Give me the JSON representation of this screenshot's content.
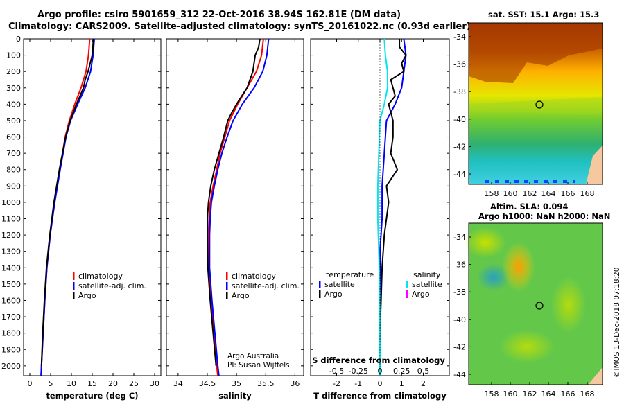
{
  "header": {
    "title_line1": "Argo profile: csiro 5901659_312 22-Oct-2016 38.94S 162.81E (DM data)",
    "title_line2": "Climatology: CARS2009. Satellite-adjusted climatology: synTS_20161022.nc (0.93d earlier)"
  },
  "colors": {
    "climatology": "#ff0000",
    "satellite": "#0000ff",
    "argo": "#000000",
    "s_satellite": "#00e5ee",
    "s_argo": "#ff00ff"
  },
  "chart_data": [
    {
      "type": "line",
      "panel": "temperature",
      "xlabel": "temperature (deg C)",
      "ylabel": "",
      "xlim": [
        -1.5,
        31.5
      ],
      "ylim": [
        2060,
        0
      ],
      "xticks": [
        "0",
        "5",
        "10",
        "15",
        "20",
        "25",
        "30"
      ],
      "yticks": [
        "0",
        "100",
        "200",
        "300",
        "400",
        "500",
        "600",
        "700",
        "800",
        "900",
        "1000",
        "1100",
        "1200",
        "1300",
        "1400",
        "1500",
        "1600",
        "1700",
        "1800",
        "1900",
        "2000"
      ],
      "legend": [
        "climatology",
        "satellite-adj. clim.",
        "Argo"
      ],
      "series": [
        {
          "name": "climatology",
          "depth": [
            0,
            100,
            200,
            300,
            400,
            500,
            600,
            800,
            1000,
            1200,
            1400,
            1600,
            1800,
            2000,
            2060
          ],
          "values": [
            14.4,
            14.1,
            13.5,
            12.3,
            10.8,
            9.5,
            8.5,
            7.2,
            5.9,
            4.9,
            4.1,
            3.6,
            3.2,
            2.8,
            2.7
          ]
        },
        {
          "name": "satellite-adj. clim.",
          "depth": [
            0,
            100,
            200,
            300,
            400,
            500,
            600,
            800,
            1000,
            1200,
            1400,
            1600,
            1800,
            2000,
            2060
          ],
          "values": [
            15.5,
            15.2,
            14.6,
            13.3,
            11.5,
            9.8,
            8.7,
            7.3,
            6.0,
            4.9,
            4.1,
            3.6,
            3.2,
            2.8,
            2.7
          ]
        },
        {
          "name": "Argo",
          "depth": [
            0,
            100,
            200,
            250,
            300,
            400,
            500,
            600,
            800,
            1000,
            1200,
            1400,
            1600,
            1800,
            2000
          ],
          "values": [
            15.3,
            15.0,
            14.0,
            13.3,
            12.9,
            11.2,
            9.7,
            8.6,
            7.1,
            5.8,
            4.8,
            4.0,
            3.5,
            3.1,
            2.8
          ]
        }
      ]
    },
    {
      "type": "line",
      "panel": "salinity",
      "xlabel": "salinity",
      "xlim": [
        33.8,
        36.15
      ],
      "ylim": [
        2060,
        0
      ],
      "xticks": [
        "34",
        "34.5",
        "35",
        "35.5",
        "36"
      ],
      "legend": [
        "climatology",
        "satellite-adj. clim.",
        "Argo"
      ],
      "annotation": [
        "Argo Australia",
        "PI: Susan Wijffels"
      ],
      "series": [
        {
          "name": "climatology",
          "depth": [
            0,
            100,
            200,
            300,
            400,
            500,
            600,
            700,
            800,
            900,
            1000,
            1100,
            1200,
            1400,
            1600,
            1800,
            2000,
            2060
          ],
          "values": [
            35.46,
            35.43,
            35.34,
            35.18,
            35.02,
            34.88,
            34.8,
            34.72,
            34.66,
            34.6,
            34.55,
            34.53,
            34.52,
            34.52,
            34.56,
            34.61,
            34.66,
            34.68
          ]
        },
        {
          "name": "satellite-adj. clim.",
          "depth": [
            0,
            100,
            200,
            300,
            400,
            500,
            600,
            700,
            800,
            900,
            1000,
            1100,
            1200,
            1400,
            1600,
            1800,
            2000,
            2060
          ],
          "values": [
            35.55,
            35.52,
            35.45,
            35.3,
            35.1,
            34.94,
            34.84,
            34.75,
            34.68,
            34.62,
            34.57,
            34.55,
            34.54,
            34.54,
            34.58,
            34.63,
            34.68,
            34.7
          ]
        },
        {
          "name": "Argo",
          "depth": [
            0,
            50,
            100,
            200,
            300,
            400,
            450,
            500,
            600,
            700,
            800,
            900,
            1000,
            1100,
            1200,
            1400,
            1600,
            1800,
            2000
          ],
          "values": [
            35.4,
            35.38,
            35.32,
            35.28,
            35.18,
            35.0,
            34.92,
            34.85,
            34.78,
            34.7,
            34.62,
            34.56,
            34.52,
            34.5,
            34.5,
            34.51,
            34.55,
            34.6,
            34.65
          ]
        }
      ]
    },
    {
      "type": "line",
      "panel": "differences",
      "xlabel": "T difference from climatology",
      "xlabel2": "S difference from climatology",
      "xlim": [
        -3.2,
        3.2
      ],
      "ylim": [
        2060,
        0
      ],
      "xticks": [
        "-2",
        "-1",
        "0",
        "1",
        "2"
      ],
      "xticks2": [
        "-0.5",
        "-0.25",
        "0",
        "0.25",
        "0.5"
      ],
      "legend_t": [
        "temperature",
        "satellite",
        "Argo"
      ],
      "legend_s": [
        "salinity",
        "satellite",
        "Argo"
      ],
      "series": [
        {
          "name": "satellite",
          "depth": [
            0,
            100,
            200,
            300,
            400,
            500,
            700,
            900,
            1100,
            1300,
            1500,
            1700,
            1900,
            2060
          ],
          "values": [
            1.1,
            1.2,
            1.1,
            1.0,
            0.7,
            0.3,
            0.2,
            0.1,
            0.1,
            0.0,
            0.0,
            0.0,
            0.0,
            0.0
          ]
        },
        {
          "name": "Argo",
          "depth": [
            0,
            50,
            100,
            150,
            200,
            250,
            300,
            350,
            400,
            500,
            600,
            700,
            800,
            900,
            1000,
            1200,
            1400,
            1600,
            1800,
            2000
          ],
          "values": [
            0.9,
            0.9,
            1.2,
            1.0,
            1.1,
            0.5,
            0.6,
            0.7,
            0.4,
            0.6,
            0.6,
            0.5,
            0.8,
            0.3,
            0.4,
            0.2,
            0.1,
            0.05,
            0.0,
            0.0
          ]
        },
        {
          "name": "satellite",
          "depth": [
            0,
            100,
            200,
            300,
            400,
            500,
            700,
            900,
            1100,
            1300,
            1500,
            1700,
            1900,
            2060
          ],
          "values": [
            0.2,
            0.25,
            0.35,
            0.35,
            0.2,
            0.0,
            -0.05,
            -0.1,
            -0.1,
            -0.05,
            -0.02,
            -0.01,
            0.0,
            0.0
          ]
        }
      ]
    },
    {
      "type": "heatmap",
      "panel": "sst_map",
      "title": "sat. SST: 15.1 Argo: 15.3",
      "xticks": [
        "158",
        "160",
        "162",
        "164",
        "166",
        "168"
      ],
      "yticks": [
        "-34",
        "-36",
        "-38",
        "-40",
        "-42",
        "-44"
      ],
      "marker": {
        "lon": 162.81,
        "lat": -38.94
      }
    },
    {
      "type": "heatmap",
      "panel": "sla_map",
      "title": "Altim. SLA: 0.094",
      "subtitle": "Argo h1000: NaN h2000: NaN",
      "xticks": [
        "158",
        "160",
        "162",
        "164",
        "166",
        "168"
      ],
      "yticks": [
        "-34",
        "-36",
        "-38",
        "-40",
        "-42",
        "-44"
      ],
      "marker": {
        "lon": 162.81,
        "lat": -38.94
      }
    }
  ],
  "footer": {
    "credit": "©IMOS 13-Dec-2018 07:18:20"
  }
}
